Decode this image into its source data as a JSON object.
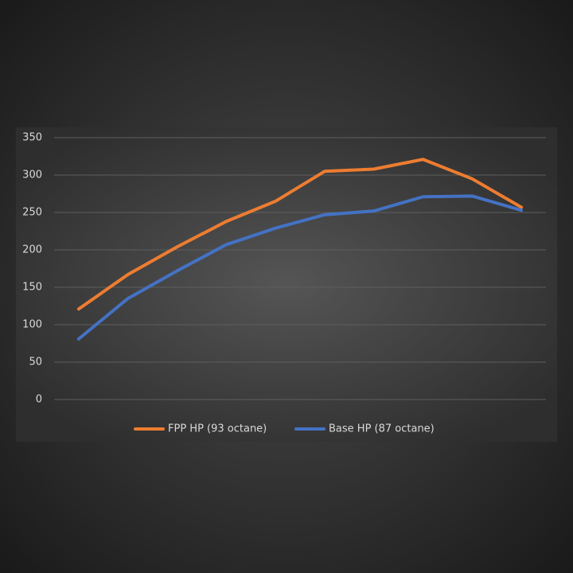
{
  "chart_data": {
    "type": "line",
    "categories": [
      null,
      null,
      null,
      null,
      null,
      null,
      null,
      null,
      null,
      null
    ],
    "series": [
      {
        "name": "FPP HP (93 octane)",
        "color": "#ed7d31",
        "values": [
          121,
          167,
          204,
          238,
          265,
          305,
          308,
          321,
          295,
          257
        ]
      },
      {
        "name": "Base HP (87 octane)",
        "color": "#4472c4",
        "values": [
          81,
          135,
          172,
          207,
          229,
          247,
          252,
          271,
          272,
          253
        ]
      }
    ],
    "ylim": [
      0,
      350
    ],
    "yticks": [
      0,
      50,
      100,
      150,
      200,
      250,
      300,
      350
    ],
    "grid": true,
    "legend": "bottom"
  }
}
